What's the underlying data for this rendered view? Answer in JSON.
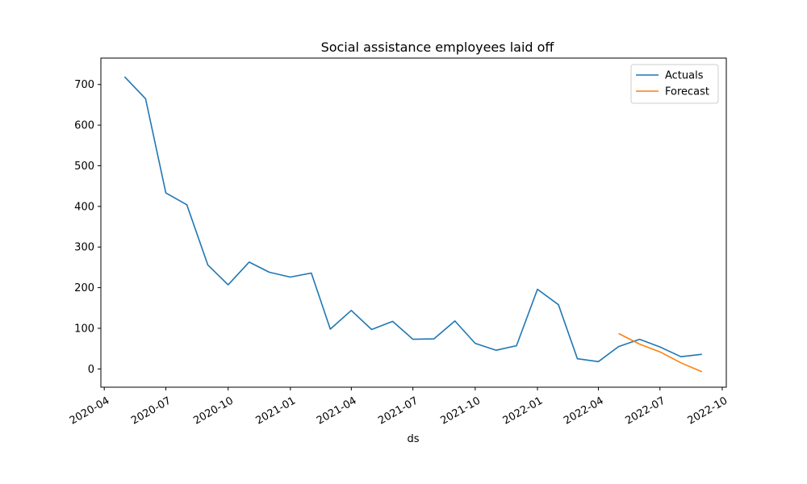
{
  "chart_data": {
    "type": "line",
    "title": "Social assistance employees laid off",
    "xlabel": "ds",
    "ylabel": "",
    "ylim": [
      -45,
      765
    ],
    "xlim": [
      "2020-03-27",
      "2022-10-07"
    ],
    "y_ticks": [
      0,
      100,
      200,
      300,
      400,
      500,
      600,
      700
    ],
    "x_ticks": [
      "2020-04",
      "2020-07",
      "2020-10",
      "2021-01",
      "2021-04",
      "2021-07",
      "2021-10",
      "2022-01",
      "2022-04",
      "2022-07",
      "2022-10"
    ],
    "legend_position": "top-right",
    "grid": false,
    "series": [
      {
        "name": "Actuals",
        "color": "#1f77b4",
        "x": [
          "2020-05-01",
          "2020-06-01",
          "2020-07-01",
          "2020-08-01",
          "2020-09-01",
          "2020-10-01",
          "2020-11-01",
          "2020-12-01",
          "2021-01-01",
          "2021-02-01",
          "2021-03-01",
          "2021-04-01",
          "2021-05-01",
          "2021-06-01",
          "2021-07-01",
          "2021-08-01",
          "2021-09-01",
          "2021-10-01",
          "2021-11-01",
          "2021-12-01",
          "2022-01-01",
          "2022-02-01",
          "2022-03-01",
          "2022-04-01",
          "2022-05-01",
          "2022-06-01",
          "2022-07-01",
          "2022-08-01",
          "2022-09-01"
        ],
        "values": [
          719,
          665,
          433,
          404,
          256,
          207,
          263,
          238,
          226,
          236,
          98,
          144,
          97,
          117,
          73,
          74,
          118,
          63,
          46,
          57,
          196,
          158,
          25,
          18,
          55,
          73,
          54,
          30,
          36
        ]
      },
      {
        "name": "Forecast",
        "color": "#ff7f0e",
        "x": [
          "2022-05-01",
          "2022-06-01",
          "2022-07-01",
          "2022-08-01",
          "2022-09-01"
        ],
        "values": [
          87,
          61,
          42,
          15,
          -7
        ]
      }
    ]
  }
}
